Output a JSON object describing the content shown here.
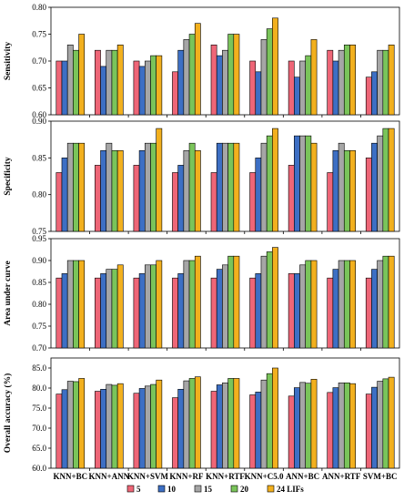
{
  "chart_data": [
    {
      "type": "bar",
      "ylabel": "Sensitivity",
      "ylim": [
        0.6,
        0.8
      ],
      "yticks": [
        "0.60",
        "0.65",
        "0.70",
        "0.75",
        "0.80"
      ],
      "categories": [
        "KNN+BC",
        "KNN+ANN",
        "KNN+SVM",
        "KNN+RF",
        "KNN+RTF",
        "KNN+C5.0",
        "ANN+BC",
        "ANN+RTF",
        "SVM+BC"
      ],
      "series": [
        {
          "name": "5",
          "values": [
            0.7,
            0.72,
            0.7,
            0.68,
            0.73,
            0.7,
            0.7,
            0.72,
            0.67
          ]
        },
        {
          "name": "10",
          "values": [
            0.7,
            0.69,
            0.69,
            0.72,
            0.71,
            0.68,
            0.67,
            0.7,
            0.68
          ]
        },
        {
          "name": "15",
          "values": [
            0.73,
            0.72,
            0.7,
            0.74,
            0.72,
            0.74,
            0.7,
            0.72,
            0.72
          ]
        },
        {
          "name": "20",
          "values": [
            0.72,
            0.72,
            0.71,
            0.75,
            0.75,
            0.76,
            0.71,
            0.73,
            0.72
          ]
        },
        {
          "name": "24 LIFs",
          "values": [
            0.75,
            0.73,
            0.71,
            0.77,
            0.75,
            0.78,
            0.74,
            0.73,
            0.73
          ]
        }
      ]
    },
    {
      "type": "bar",
      "ylabel": "Specificity",
      "ylim": [
        0.75,
        0.9
      ],
      "yticks": [
        "0.75",
        "0.80",
        "0.85",
        "0.90"
      ],
      "categories": [
        "KNN+BC",
        "KNN+ANN",
        "KNN+SVM",
        "KNN+RF",
        "KNN+RTF",
        "KNN+C5.0",
        "ANN+BC",
        "ANN+RTF",
        "SVM+BC"
      ],
      "series": [
        {
          "name": "5",
          "values": [
            0.83,
            0.84,
            0.84,
            0.83,
            0.83,
            0.83,
            0.84,
            0.83,
            0.85
          ]
        },
        {
          "name": "10",
          "values": [
            0.85,
            0.86,
            0.86,
            0.84,
            0.87,
            0.85,
            0.88,
            0.86,
            0.87
          ]
        },
        {
          "name": "15",
          "values": [
            0.87,
            0.87,
            0.87,
            0.86,
            0.87,
            0.87,
            0.88,
            0.87,
            0.88
          ]
        },
        {
          "name": "20",
          "values": [
            0.87,
            0.86,
            0.87,
            0.87,
            0.87,
            0.88,
            0.88,
            0.86,
            0.89
          ]
        },
        {
          "name": "24 LIFs",
          "values": [
            0.87,
            0.86,
            0.89,
            0.86,
            0.87,
            0.89,
            0.87,
            0.86,
            0.89
          ]
        }
      ]
    },
    {
      "type": "bar",
      "ylabel": "Area under curve",
      "ylim": [
        0.7,
        0.95
      ],
      "yticks": [
        "0.70",
        "0.75",
        "0.80",
        "0.85",
        "0.90",
        "0.95"
      ],
      "categories": [
        "KNN+BC",
        "KNN+ANN",
        "KNN+SVM",
        "KNN+RF",
        "KNN+RTF",
        "KNN+C5.0",
        "ANN+BC",
        "ANN+RTF",
        "SVM+BC"
      ],
      "series": [
        {
          "name": "5",
          "values": [
            0.86,
            0.86,
            0.86,
            0.86,
            0.86,
            0.86,
            0.87,
            0.86,
            0.86
          ]
        },
        {
          "name": "10",
          "values": [
            0.87,
            0.87,
            0.87,
            0.87,
            0.88,
            0.87,
            0.87,
            0.88,
            0.88
          ]
        },
        {
          "name": "15",
          "values": [
            0.9,
            0.88,
            0.89,
            0.9,
            0.89,
            0.91,
            0.89,
            0.9,
            0.9
          ]
        },
        {
          "name": "20",
          "values": [
            0.9,
            0.88,
            0.89,
            0.9,
            0.91,
            0.92,
            0.9,
            0.9,
            0.91
          ]
        },
        {
          "name": "24 LIFs",
          "values": [
            0.9,
            0.89,
            0.9,
            0.91,
            0.91,
            0.93,
            0.9,
            0.9,
            0.91
          ]
        }
      ]
    },
    {
      "type": "bar",
      "ylabel": "Overall accuracy (%)",
      "ylim": [
        60,
        87.5
      ],
      "yticks": [
        "60.0",
        "65.0",
        "70.0",
        "75.0",
        "80.0",
        "85.0"
      ],
      "categories": [
        "KNN+BC",
        "KNN+ANN",
        "KNN+SVM",
        "KNN+RF",
        "KNN+RTF",
        "KNN+C5.0",
        "ANN+BC",
        "ANN+RTF",
        "SVM+BC"
      ],
      "series": [
        {
          "name": "5",
          "values": [
            78.5,
            79.2,
            78.7,
            77.6,
            79.2,
            78.3,
            78.0,
            78.9,
            78.5
          ]
        },
        {
          "name": "10",
          "values": [
            79.6,
            79.7,
            79.9,
            79.7,
            80.8,
            79.0,
            80.1,
            80.1,
            80.2
          ]
        },
        {
          "name": "15",
          "values": [
            81.7,
            80.9,
            80.5,
            81.8,
            81.3,
            82.0,
            81.4,
            81.3,
            81.7
          ]
        },
        {
          "name": "20",
          "values": [
            81.6,
            80.7,
            80.9,
            82.4,
            82.4,
            83.6,
            81.2,
            81.3,
            82.3
          ]
        },
        {
          "name": "24 LIFs",
          "values": [
            82.4,
            81.1,
            82.0,
            82.8,
            82.4,
            85.0,
            82.2,
            81.1,
            82.7
          ]
        }
      ]
    }
  ],
  "legend": {
    "position": "bottom",
    "entries": [
      "5",
      "10",
      "15",
      "20",
      "24 LIFs"
    ]
  },
  "colors": [
    "#ee6677",
    "#3d6fc4",
    "#a6a6a6",
    "#7ac45a",
    "#f2b01e"
  ]
}
